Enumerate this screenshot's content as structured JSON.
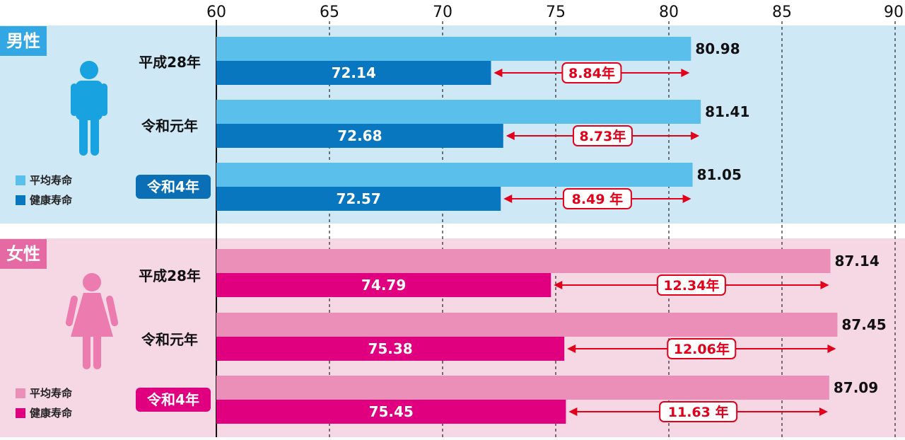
{
  "chart_data": {
    "type": "bar",
    "orientation": "horizontal",
    "xlim": [
      60,
      90
    ],
    "xticks": [
      60,
      65,
      70,
      75,
      80,
      85,
      90
    ],
    "grid": "dashed vertical",
    "groups": [
      {
        "name": "男性",
        "legend": [
          "平均寿命",
          "健康寿命"
        ],
        "colors": {
          "background": "#cfe8f6",
          "life": "#5bbfec",
          "health": "#0877c0",
          "label_bg": "#33a7e3",
          "badge": "#0b6fb6"
        },
        "rows": [
          {
            "label": "平成28年",
            "life": 80.98,
            "health": 72.14,
            "gap": "8.84年",
            "highlight": false
          },
          {
            "label": "令和元年",
            "life": 81.41,
            "health": 72.68,
            "gap": "8.73年",
            "highlight": false
          },
          {
            "label": "令和4年",
            "life": 81.05,
            "health": 72.57,
            "gap": "8.49 年",
            "highlight": true
          }
        ]
      },
      {
        "name": "女性",
        "legend": [
          "平均寿命",
          "健康寿命"
        ],
        "colors": {
          "background": "#f6d7e4",
          "life": "#ec8fb8",
          "health": "#e0007f",
          "label_bg": "#e56aa3",
          "badge": "#e0007f"
        },
        "rows": [
          {
            "label": "平成28年",
            "life": 87.14,
            "health": 74.79,
            "gap": "12.34年",
            "highlight": false
          },
          {
            "label": "令和元年",
            "life": 87.45,
            "health": 75.38,
            "gap": "12.06年",
            "highlight": false
          },
          {
            "label": "令和4年",
            "life": 87.09,
            "health": 75.45,
            "gap": "11.63 年",
            "highlight": true
          }
        ]
      }
    ]
  },
  "icons": {
    "male": "male-figure-icon",
    "female": "female-figure-icon"
  },
  "arrow_color": "#e3001b"
}
